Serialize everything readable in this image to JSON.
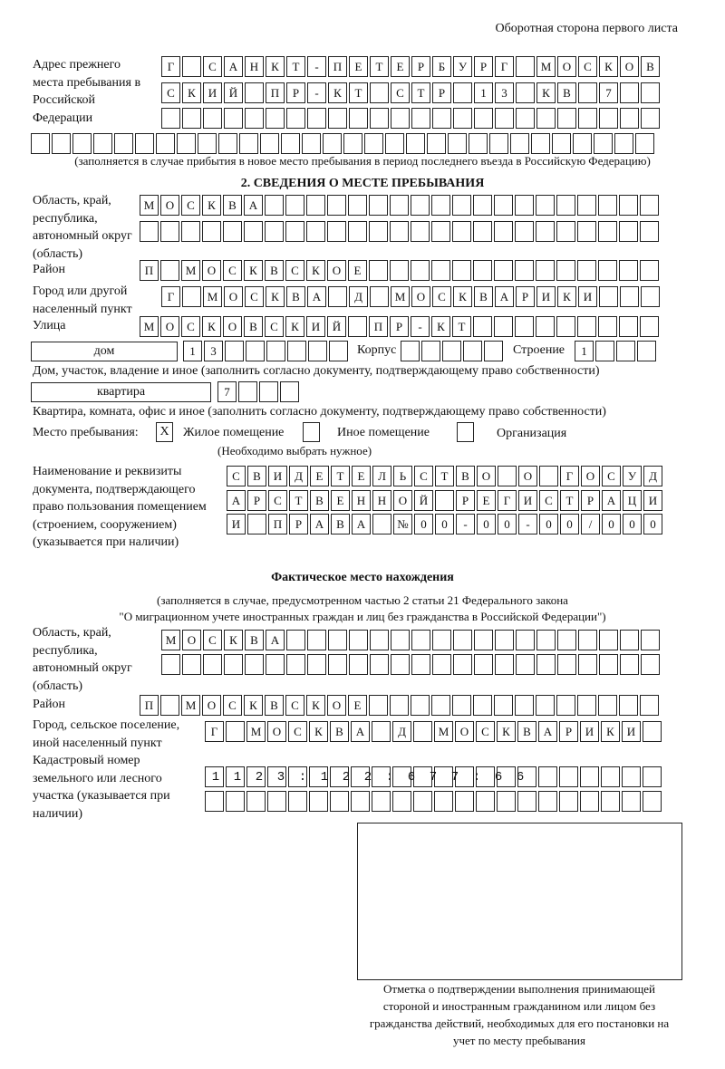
{
  "header": {
    "side_note": "Оборотная сторона первого листа"
  },
  "previous_address": {
    "label": "Адрес прежнего места пребывания в Российской Федерации",
    "rows": [
      "Г САНКТ-ПЕТЕРБУРГ МОСКОВ",
      "СКИЙ ПР-КТ СТР 13 КВ 7",
      "",
      ""
    ],
    "note": "(заполняется в случае прибытия в новое место пребывания в период последнего въезда в Российскую Федерацию)"
  },
  "section2": {
    "title": "2. СВЕДЕНИЯ О МЕСТЕ ПРЕБЫВАНИЯ",
    "region_label": "Область, край, республика, автономный округ (область)",
    "region_rows": [
      "МОСКВА",
      ""
    ],
    "district_label": "Район",
    "district": "П МОСКВСКОЕ",
    "city_label": "Город или другой населенный пункт",
    "city": "Г МОСКВА Д МОСКВАРИКИ",
    "street_label": "Улица",
    "street": "МОСКОВСКИЙ ПР-КТ",
    "house_type": "дом",
    "house_number": "13",
    "korpus_label": "Корпус",
    "korpus": "",
    "building_label": "Строение",
    "building": "1",
    "house_note": "Дом, участок, владение и иное (заполнить согласно документу, подтверждающему право собственности)",
    "apartment_type": "квартира",
    "apartment_number": "7",
    "apartment_note": "Квартира, комната, офис и иное (заполнить согласно документу, подтверждающему право собственности)",
    "stay_place_label": "Место пребывания:",
    "stay_options": [
      {
        "label": "Жилое помещение",
        "mark": "X"
      },
      {
        "label": "Иное помещение",
        "mark": ""
      },
      {
        "label": "Организация",
        "mark": ""
      }
    ],
    "choose_note": "(Необходимо выбрать нужное)",
    "document_label": "Наименование и реквизиты документа, подтверждающего право пользования помещением (строением, сооружением) (указывается при наличии)",
    "document_rows": [
      "СВИДЕТЕЛЬСТВО О ГОСУД",
      "АРСТВЕННОЙ РЕГИСТРАЦИ",
      "И ПРАВА №00-00-00/000"
    ]
  },
  "actual_location": {
    "title": "Фактическое место нахождения",
    "note_line1": "(заполняется в случае, предусмотренном частью 2 статьи 21 Федерального закона",
    "note_line2": "\"О миграционном учете иностранных граждан и лиц без гражданства в Российской Федерации\")",
    "region_label": "Область, край, республика, автономный округ (область)",
    "region_rows": [
      "МОСКВА",
      ""
    ],
    "district_label": "Район",
    "district": "П МОСКВСКОЕ",
    "city_label": "Город, сельское поселение, иной населенный пункт",
    "city": "Г МОСКВА Д МОСКВАРИКИ",
    "cadastral_label": "Кадастровый номер земельного или лесного участка (указывается при наличии)",
    "cadastral_rows": [
      "1123:122:677:66",
      ""
    ]
  },
  "confirmation": {
    "caption": "Отметка о подтверждении выполнения принимающей стороной и иностранным гражданином или лицом без гражданства действий, необходимых для его постановки на учет по месту пребывания"
  }
}
